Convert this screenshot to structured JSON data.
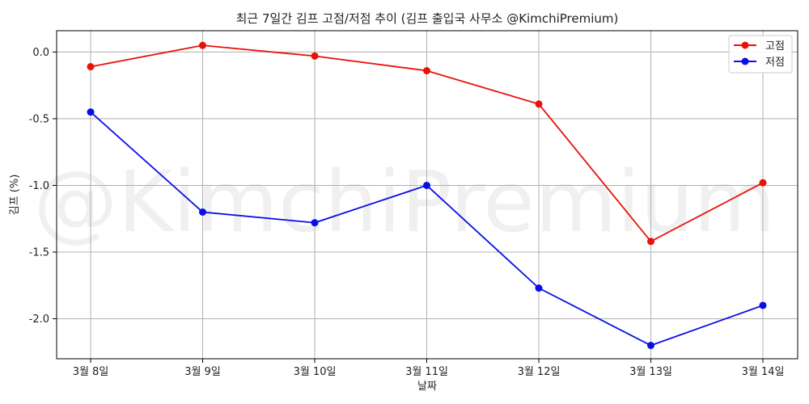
{
  "chart_data": {
    "type": "line",
    "title": "최근 7일간 김프 고점/저점 추이 (김프 출입국 사무소 @KimchiPremium)",
    "xlabel": "날짜",
    "ylabel": "김프 (%)",
    "categories": [
      "3월 8일",
      "3월 9일",
      "3월 10일",
      "3월 11일",
      "3월 12일",
      "3월 13일",
      "3월 14일"
    ],
    "ylim": [
      -2.3,
      0.16
    ],
    "yticks": [
      0.0,
      -0.5,
      -1.0,
      -1.5,
      -2.0
    ],
    "ytick_labels": [
      "0.0",
      "-0.5",
      "-1.0",
      "-1.5",
      "-2.0"
    ],
    "grid": true,
    "legend_position": "top-right",
    "watermark": "@KimchiPremium",
    "series": [
      {
        "name": "고점",
        "color": "#e8120c",
        "values": [
          -0.11,
          0.05,
          -0.03,
          -0.14,
          -0.39,
          -1.42,
          -0.98
        ]
      },
      {
        "name": "저점",
        "color": "#0a0ee8",
        "values": [
          -0.45,
          -1.2,
          -1.28,
          -1.0,
          -1.77,
          -2.2,
          -1.9
        ]
      }
    ]
  }
}
